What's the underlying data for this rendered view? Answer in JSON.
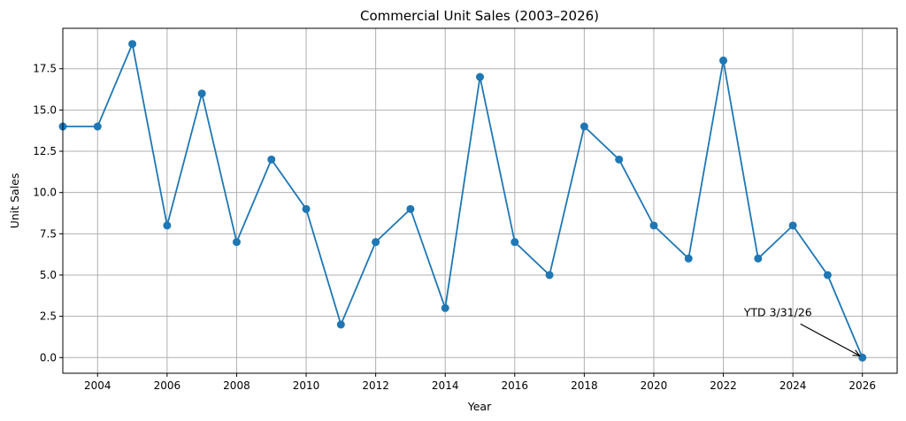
{
  "chart_data": {
    "type": "line",
    "title": "Commercial Unit Sales (2003–2026)",
    "xlabel": "Year",
    "ylabel": "Unit Sales",
    "x": [
      2003,
      2004,
      2005,
      2006,
      2007,
      2008,
      2009,
      2010,
      2011,
      2012,
      2013,
      2014,
      2015,
      2016,
      2017,
      2018,
      2019,
      2020,
      2021,
      2022,
      2023,
      2024,
      2025,
      2026
    ],
    "series": [
      {
        "values": [
          14,
          14,
          19,
          8,
          16,
          7,
          12,
          9,
          2,
          7,
          9,
          3,
          17,
          7,
          5,
          14,
          12,
          8,
          6,
          18,
          6,
          8,
          5,
          0
        ],
        "color": "#1f77b4"
      }
    ],
    "xlim": [
      2003,
      2027
    ],
    "ylim": [
      -0.95,
      19.95
    ],
    "x_ticks": [
      "2004",
      "2006",
      "2008",
      "2010",
      "2012",
      "2014",
      "2016",
      "2018",
      "2020",
      "2022",
      "2024",
      "2026"
    ],
    "y_ticks": [
      "0.0",
      "2.5",
      "5.0",
      "7.5",
      "10.0",
      "12.5",
      "15.0",
      "17.5"
    ],
    "grid": true,
    "annotations": [
      {
        "text": "YTD 3/31/26",
        "x": 2026,
        "y": 0
      }
    ]
  }
}
